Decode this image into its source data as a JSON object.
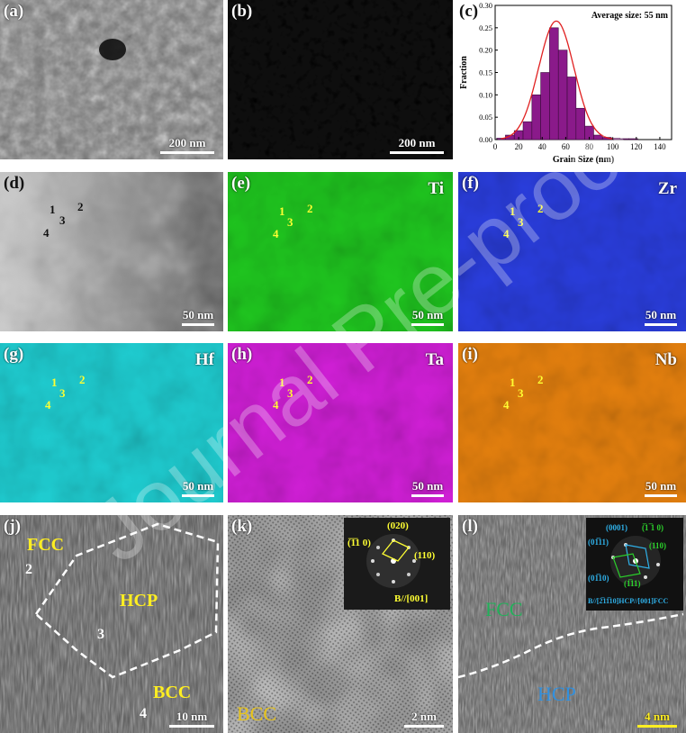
{
  "watermark": "Journal Pre-proof",
  "panels": {
    "a": {
      "label": "(a)",
      "scale": "200 nm"
    },
    "b": {
      "label": "(b)",
      "scale": "200 nm"
    },
    "c": {
      "label": "(c)"
    },
    "d": {
      "label": "(d)",
      "scale": "50 nm",
      "points": [
        "1",
        "2",
        "3",
        "4"
      ]
    },
    "e": {
      "label": "(e)",
      "element": "Ti",
      "scale": "50 nm",
      "points": [
        "1",
        "2",
        "3",
        "4"
      ],
      "color": "#1fc81f"
    },
    "f": {
      "label": "(f)",
      "element": "Zr",
      "scale": "50 nm",
      "points": [
        "1",
        "2",
        "3",
        "4"
      ],
      "color": "#2a3ee0"
    },
    "g": {
      "label": "(g)",
      "element": "Hf",
      "scale": "50 nm",
      "points": [
        "1",
        "2",
        "3",
        "4"
      ],
      "color": "#1fd0d4"
    },
    "h": {
      "label": "(h)",
      "element": "Ta",
      "scale": "50 nm",
      "points": [
        "1",
        "2",
        "3",
        "4"
      ],
      "color": "#d21fd8"
    },
    "i": {
      "label": "(i)",
      "element": "Nb",
      "scale": "50 nm",
      "points": [
        "1",
        "2",
        "3",
        "4"
      ],
      "color": "#e8820e"
    },
    "j": {
      "label": "(j)",
      "scale": "10 nm",
      "phases": [
        "FCC",
        "HCP",
        "BCC"
      ],
      "points": [
        "2",
        "3",
        "4"
      ]
    },
    "k": {
      "label": "(k)",
      "scale": "2 nm",
      "phase": "BCC",
      "fft": {
        "spots": [
          "(020)",
          "(̅1̅1 0)",
          "(110)"
        ],
        "zone": "B//[001]"
      }
    },
    "l": {
      "label": "(l)",
      "scale": "4 nm",
      "phases": [
        "FCC",
        "HCP"
      ],
      "fft": {
        "spots": [
          "(0001)",
          "(̅1 ̅1 0)",
          "(01̅11)",
          "(110)",
          "(01̅10)",
          "(1̅11)"
        ],
        "zone": "B//[2̅11̅10]HCP//[001]FCC"
      }
    }
  },
  "chart_data": {
    "type": "bar",
    "title": "Average size: 55 nm",
    "xlabel": "Grain Size (nm)",
    "ylabel": "Fraction",
    "xlim": [
      0,
      150
    ],
    "ylim": [
      0,
      0.3
    ],
    "xticks": [
      0,
      20,
      40,
      60,
      80,
      100,
      120,
      140
    ],
    "yticks": [
      0.0,
      0.05,
      0.1,
      0.15,
      0.2,
      0.25,
      0.3
    ],
    "bin_width": 7.5,
    "bin_centers": [
      5,
      12.5,
      20,
      27.5,
      35,
      42.5,
      50,
      57.5,
      65,
      72.5,
      80,
      87.5,
      95,
      102.5,
      110,
      117.5
    ],
    "values": [
      0.003,
      0.01,
      0.02,
      0.04,
      0.1,
      0.15,
      0.25,
      0.2,
      0.14,
      0.07,
      0.03,
      0.01,
      0.005,
      0.003,
      0.002,
      0.002
    ],
    "fit": {
      "type": "gaussian",
      "mean": 52,
      "sigma": 15,
      "peak": 0.265,
      "color": "#e02020"
    },
    "bar_color": "#8a1a8a"
  }
}
